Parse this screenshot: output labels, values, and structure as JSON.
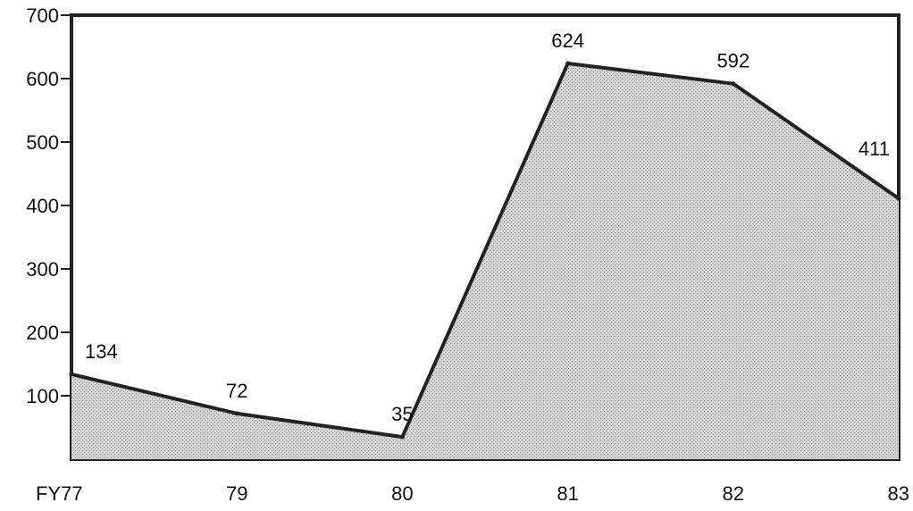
{
  "chart_data": {
    "type": "area",
    "title": "",
    "xlabel": "",
    "ylabel": "",
    "categories": [
      "FY77",
      "79",
      "80",
      "81",
      "82",
      "83"
    ],
    "values": [
      134,
      72,
      35,
      624,
      592,
      411
    ],
    "data_labels": [
      "134",
      "72",
      "35",
      "624",
      "592",
      "411"
    ],
    "ylim": [
      0,
      700
    ],
    "yticks": [
      100,
      200,
      300,
      400,
      500,
      600,
      700
    ],
    "grid": false,
    "legend": "none",
    "colors": {
      "fill": "#c9c9c9",
      "line": "#222222",
      "frame": "#222222"
    }
  }
}
